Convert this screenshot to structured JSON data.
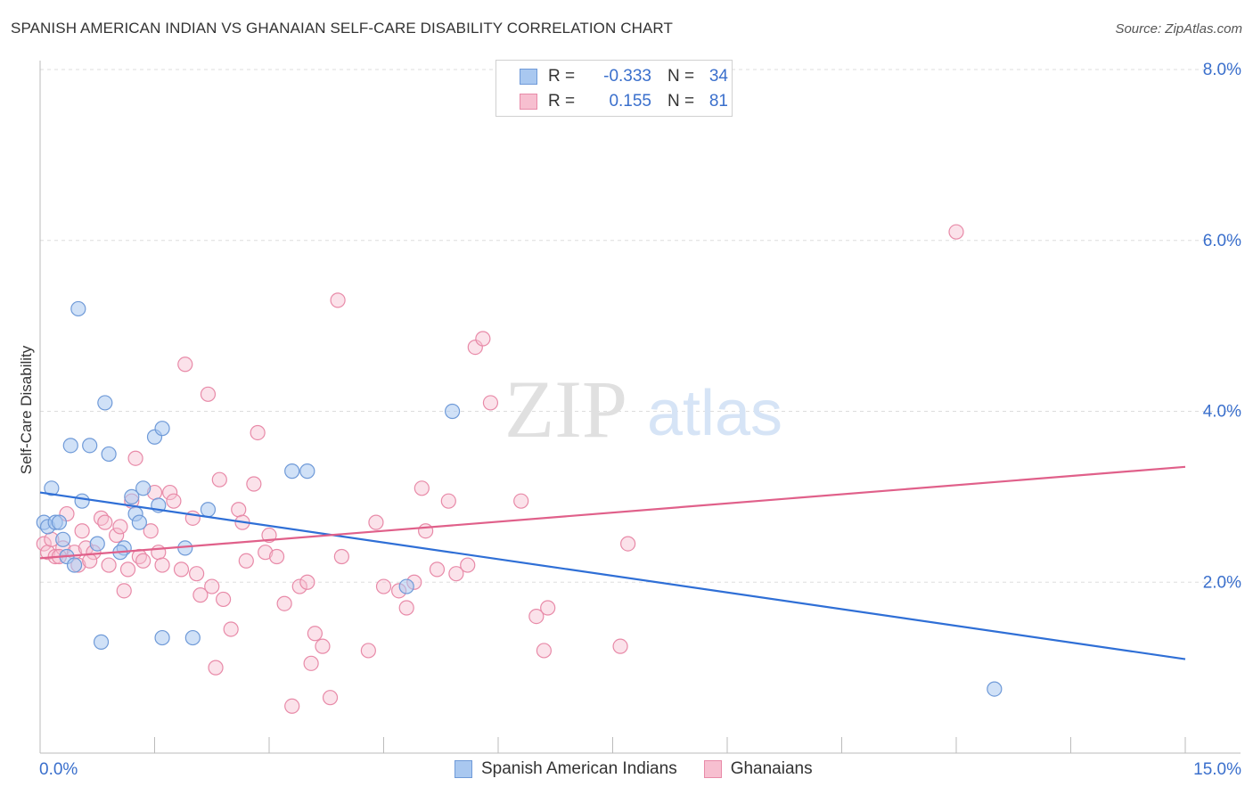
{
  "title": "SPANISH AMERICAN INDIAN VS GHANAIAN SELF-CARE DISABILITY CORRELATION CHART",
  "source": "Source: ZipAtlas.com",
  "watermark": {
    "zip": "ZIP",
    "atlas": "atlas"
  },
  "legend": {
    "rows": [
      {
        "r_label": "R =",
        "r_value": "-0.333",
        "n_label": "N =",
        "n_value": "34"
      },
      {
        "r_label": "R =",
        "r_value": "0.155",
        "n_label": "N =",
        "n_value": "81"
      }
    ]
  },
  "bottom_legend": [
    "Spanish American Indians",
    "Ghanaians"
  ],
  "colors": {
    "blue_fill": "#a9c8f0",
    "blue_stroke": "#6f9ad8",
    "blue_line": "#2f6fd6",
    "pink_fill": "#f7bfd0",
    "pink_stroke": "#e88aa8",
    "pink_line": "#e0608a",
    "grid": "#dddddd",
    "tick_text": "#3a6fcc"
  },
  "chart_data": {
    "type": "scatter",
    "title": "SPANISH AMERICAN INDIAN VS GHANAIAN SELF-CARE DISABILITY CORRELATION CHART",
    "xlabel": "",
    "ylabel": "Self-Care Disability",
    "xlim": [
      0,
      15
    ],
    "ylim": [
      0,
      8
    ],
    "x_tick_labels": [
      "0.0%",
      "15.0%"
    ],
    "y_ticks": [
      2,
      4,
      6,
      8
    ],
    "y_tick_labels": [
      "2.0%",
      "4.0%",
      "6.0%",
      "8.0%"
    ],
    "series": [
      {
        "name": "Spanish American Indians",
        "r": -0.333,
        "n": 34,
        "trend": {
          "x": [
            0,
            15
          ],
          "y": [
            3.05,
            1.1
          ]
        },
        "points": [
          [
            0.05,
            2.7
          ],
          [
            0.1,
            2.65
          ],
          [
            0.15,
            3.1
          ],
          [
            0.2,
            2.7
          ],
          [
            0.3,
            2.5
          ],
          [
            0.35,
            2.3
          ],
          [
            0.4,
            3.6
          ],
          [
            0.5,
            5.2
          ],
          [
            0.55,
            2.95
          ],
          [
            0.65,
            3.6
          ],
          [
            0.75,
            2.45
          ],
          [
            0.8,
            1.3
          ],
          [
            0.85,
            4.1
          ],
          [
            0.9,
            3.5
          ],
          [
            1.1,
            2.4
          ],
          [
            1.2,
            3.0
          ],
          [
            1.25,
            2.8
          ],
          [
            1.3,
            2.7
          ],
          [
            1.35,
            3.1
          ],
          [
            1.5,
            3.7
          ],
          [
            1.55,
            2.9
          ],
          [
            1.6,
            3.8
          ],
          [
            1.6,
            1.35
          ],
          [
            1.9,
            2.4
          ],
          [
            2.0,
            1.35
          ],
          [
            2.2,
            2.85
          ],
          [
            3.3,
            3.3
          ],
          [
            3.5,
            3.3
          ],
          [
            4.8,
            1.95
          ],
          [
            5.4,
            4.0
          ],
          [
            12.5,
            0.75
          ],
          [
            0.45,
            2.2
          ],
          [
            1.05,
            2.35
          ],
          [
            0.25,
            2.7
          ]
        ]
      },
      {
        "name": "Ghanaians",
        "r": 0.155,
        "n": 81,
        "trend": {
          "x": [
            0,
            15
          ],
          "y": [
            2.28,
            3.35
          ]
        },
        "points": [
          [
            0.05,
            2.45
          ],
          [
            0.1,
            2.35
          ],
          [
            0.15,
            2.5
          ],
          [
            0.2,
            2.3
          ],
          [
            0.3,
            2.4
          ],
          [
            0.35,
            2.8
          ],
          [
            0.45,
            2.35
          ],
          [
            0.5,
            2.2
          ],
          [
            0.55,
            2.6
          ],
          [
            0.6,
            2.4
          ],
          [
            0.7,
            2.35
          ],
          [
            0.8,
            2.75
          ],
          [
            0.85,
            2.7
          ],
          [
            0.9,
            2.2
          ],
          [
            1.0,
            2.55
          ],
          [
            1.05,
            2.65
          ],
          [
            1.1,
            1.9
          ],
          [
            1.2,
            2.95
          ],
          [
            1.25,
            3.45
          ],
          [
            1.3,
            2.3
          ],
          [
            1.35,
            2.25
          ],
          [
            1.45,
            2.6
          ],
          [
            1.5,
            3.05
          ],
          [
            1.55,
            2.35
          ],
          [
            1.6,
            2.2
          ],
          [
            1.7,
            3.05
          ],
          [
            1.75,
            2.95
          ],
          [
            1.85,
            2.15
          ],
          [
            1.9,
            4.55
          ],
          [
            2.0,
            2.75
          ],
          [
            2.1,
            1.85
          ],
          [
            2.2,
            4.2
          ],
          [
            2.25,
            1.95
          ],
          [
            2.3,
            1.0
          ],
          [
            2.35,
            3.2
          ],
          [
            2.4,
            1.8
          ],
          [
            2.5,
            1.45
          ],
          [
            2.6,
            2.85
          ],
          [
            2.65,
            2.7
          ],
          [
            2.7,
            2.25
          ],
          [
            2.8,
            3.15
          ],
          [
            2.85,
            3.75
          ],
          [
            2.95,
            2.35
          ],
          [
            3.0,
            2.55
          ],
          [
            3.1,
            2.3
          ],
          [
            3.2,
            1.75
          ],
          [
            3.3,
            0.55
          ],
          [
            3.4,
            1.95
          ],
          [
            3.5,
            2.0
          ],
          [
            3.55,
            1.05
          ],
          [
            3.6,
            1.4
          ],
          [
            3.7,
            1.25
          ],
          [
            3.8,
            0.65
          ],
          [
            3.9,
            5.3
          ],
          [
            3.95,
            2.3
          ],
          [
            4.3,
            1.2
          ],
          [
            4.4,
            2.7
          ],
          [
            4.5,
            1.95
          ],
          [
            4.7,
            1.9
          ],
          [
            4.8,
            1.7
          ],
          [
            4.9,
            2.0
          ],
          [
            5.0,
            3.1
          ],
          [
            5.05,
            2.6
          ],
          [
            5.2,
            2.15
          ],
          [
            5.35,
            2.95
          ],
          [
            5.45,
            2.1
          ],
          [
            5.6,
            2.2
          ],
          [
            5.7,
            4.75
          ],
          [
            5.8,
            4.85
          ],
          [
            5.9,
            4.1
          ],
          [
            6.3,
            2.95
          ],
          [
            6.5,
            1.6
          ],
          [
            6.6,
            1.2
          ],
          [
            6.65,
            1.7
          ],
          [
            7.6,
            1.25
          ],
          [
            7.7,
            2.45
          ],
          [
            12.0,
            6.1
          ],
          [
            0.25,
            2.3
          ],
          [
            0.65,
            2.25
          ],
          [
            1.15,
            2.15
          ],
          [
            2.05,
            2.1
          ]
        ]
      }
    ]
  }
}
